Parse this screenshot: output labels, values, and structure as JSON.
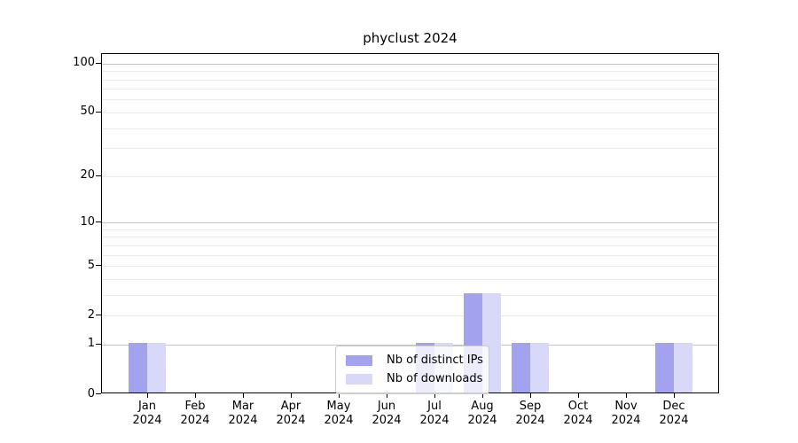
{
  "title": "phyclust 2024",
  "colors": {
    "distinct_ips_bar": "#a2a2ef",
    "downloads_bar": "#d8d8f8",
    "major_gridline": "#c4c4c4",
    "minor_gridline": "#eaeaea",
    "axis": "#000000",
    "legend_border": "#cccccc",
    "background": "#ffffff"
  },
  "chart_data": {
    "type": "bar",
    "title": "phyclust 2024",
    "categories": [
      "Jan 2024",
      "Feb 2024",
      "Mar 2024",
      "Apr 2024",
      "May 2024",
      "Jun 2024",
      "Jul 2024",
      "Aug 2024",
      "Sep 2024",
      "Oct 2024",
      "Nov 2024",
      "Dec 2024"
    ],
    "series": [
      {
        "name": "Nb of distinct IPs",
        "color": "#a2a2ef",
        "values": [
          1,
          0,
          0,
          0,
          0,
          0,
          1,
          3,
          1,
          0,
          0,
          1
        ]
      },
      {
        "name": "Nb of downloads",
        "color": "#d8d8f8",
        "values": [
          1,
          0,
          0,
          0,
          0,
          0,
          1,
          3,
          1,
          0,
          0,
          1
        ]
      }
    ],
    "xlabel": "",
    "ylabel": "",
    "y_scale": "log1p",
    "ylim": [
      0,
      115
    ],
    "y_ticks": [
      0,
      1,
      2,
      5,
      10,
      20,
      50,
      100
    ],
    "major_gridlines": [
      1,
      10,
      100
    ],
    "minor_gridlines": [
      2,
      3,
      4,
      5,
      6,
      7,
      8,
      9,
      20,
      30,
      40,
      50,
      60,
      70,
      80,
      90
    ],
    "grid": "horizontal",
    "legend_position": "lower center"
  }
}
